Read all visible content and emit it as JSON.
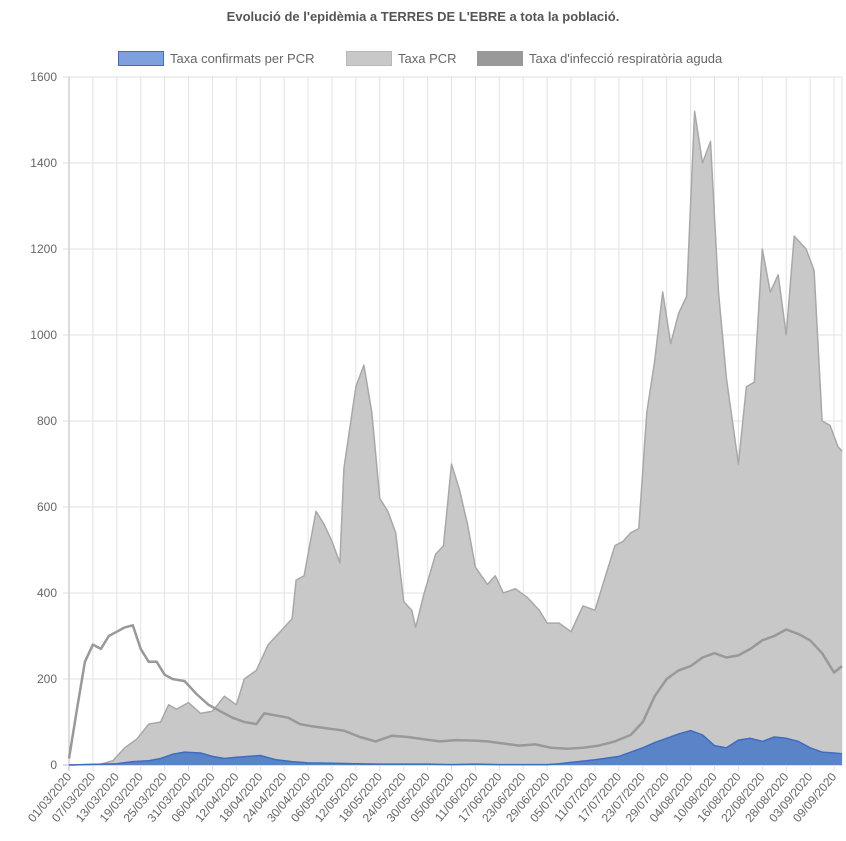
{
  "chart_data": {
    "type": "area",
    "title": "Evolució de l'epidèmia a TERRES DE L'EBRE a tota la població.",
    "xlabel": "",
    "ylabel": "",
    "ylim": [
      0,
      1600
    ],
    "yticks": [
      "0",
      "200",
      "400",
      "600",
      "800",
      "1000",
      "1200",
      "1400",
      "1600"
    ],
    "x_tick_labels": [
      "01/03/2020",
      "07/03/2020",
      "13/03/2020",
      "19/03/2020",
      "25/03/2020",
      "31/03/2020",
      "06/04/2020",
      "12/04/2020",
      "18/04/2020",
      "24/04/2020",
      "30/04/2020",
      "06/05/2020",
      "12/05/2020",
      "18/05/2020",
      "24/05/2020",
      "30/05/2020",
      "05/06/2020",
      "11/06/2020",
      "17/06/2020",
      "23/06/2020",
      "29/06/2020",
      "05/07/2020",
      "11/07/2020",
      "17/07/2020",
      "23/07/2020",
      "29/07/2020",
      "04/08/2020",
      "10/08/2020",
      "16/08/2020",
      "22/08/2020",
      "28/08/2020",
      "03/09/2020",
      "09/09/2020"
    ],
    "x_start": "01/03/2020",
    "x_end": "11/09/2020",
    "grid": true,
    "legend_position": "top",
    "series": [
      {
        "name": "Taxa confirmats per PCR",
        "color": "#5b84c8",
        "border": "#3e6dbd",
        "points": [
          [
            "01/03/2020",
            0
          ],
          [
            "13/03/2020",
            3
          ],
          [
            "17/03/2020",
            8
          ],
          [
            "21/03/2020",
            10
          ],
          [
            "24/03/2020",
            15
          ],
          [
            "27/03/2020",
            25
          ],
          [
            "30/03/2020",
            30
          ],
          [
            "03/04/2020",
            28
          ],
          [
            "06/04/2020",
            20
          ],
          [
            "09/04/2020",
            15
          ],
          [
            "12/04/2020",
            18
          ],
          [
            "15/04/2020",
            20
          ],
          [
            "18/04/2020",
            22
          ],
          [
            "22/04/2020",
            12
          ],
          [
            "26/04/2020",
            8
          ],
          [
            "30/04/2020",
            5
          ],
          [
            "06/05/2020",
            4
          ],
          [
            "12/05/2020",
            3
          ],
          [
            "18/05/2020",
            2
          ],
          [
            "24/05/2020",
            2
          ],
          [
            "30/05/2020",
            2
          ],
          [
            "05/06/2020",
            1
          ],
          [
            "11/06/2020",
            2
          ],
          [
            "17/06/2020",
            1
          ],
          [
            "23/06/2020",
            1
          ],
          [
            "29/06/2020",
            1
          ],
          [
            "02/07/2020",
            3
          ],
          [
            "05/07/2020",
            6
          ],
          [
            "08/07/2020",
            9
          ],
          [
            "11/07/2020",
            12
          ],
          [
            "14/07/2020",
            16
          ],
          [
            "17/07/2020",
            20
          ],
          [
            "20/07/2020",
            30
          ],
          [
            "23/07/2020",
            40
          ],
          [
            "26/07/2020",
            52
          ],
          [
            "29/07/2020",
            62
          ],
          [
            "01/08/2020",
            72
          ],
          [
            "04/08/2020",
            80
          ],
          [
            "07/08/2020",
            70
          ],
          [
            "10/08/2020",
            45
          ],
          [
            "13/08/2020",
            40
          ],
          [
            "16/08/2020",
            58
          ],
          [
            "19/08/2020",
            62
          ],
          [
            "22/08/2020",
            55
          ],
          [
            "25/08/2020",
            65
          ],
          [
            "28/08/2020",
            62
          ],
          [
            "31/08/2020",
            55
          ],
          [
            "03/09/2020",
            40
          ],
          [
            "06/09/2020",
            30
          ],
          [
            "09/09/2020",
            28
          ],
          [
            "11/09/2020",
            26
          ]
        ]
      },
      {
        "name": "Taxa PCR",
        "color": "#c8c8c8",
        "border": "#a8a8a8",
        "points": [
          [
            "01/03/2020",
            0
          ],
          [
            "09/03/2020",
            2
          ],
          [
            "12/03/2020",
            10
          ],
          [
            "15/03/2020",
            40
          ],
          [
            "18/03/2020",
            60
          ],
          [
            "21/03/2020",
            95
          ],
          [
            "24/03/2020",
            100
          ],
          [
            "26/03/2020",
            140
          ],
          [
            "28/03/2020",
            130
          ],
          [
            "31/03/2020",
            145
          ],
          [
            "03/04/2020",
            120
          ],
          [
            "06/04/2020",
            125
          ],
          [
            "09/04/2020",
            160
          ],
          [
            "12/04/2020",
            140
          ],
          [
            "14/04/2020",
            200
          ],
          [
            "17/04/2020",
            220
          ],
          [
            "20/04/2020",
            280
          ],
          [
            "23/04/2020",
            310
          ],
          [
            "26/04/2020",
            340
          ],
          [
            "27/04/2020",
            430
          ],
          [
            "29/04/2020",
            440
          ],
          [
            "02/05/2020",
            590
          ],
          [
            "04/05/2020",
            560
          ],
          [
            "06/05/2020",
            520
          ],
          [
            "08/05/2020",
            470
          ],
          [
            "09/05/2020",
            690
          ],
          [
            "12/05/2020",
            880
          ],
          [
            "14/05/2020",
            930
          ],
          [
            "16/05/2020",
            820
          ],
          [
            "18/05/2020",
            620
          ],
          [
            "20/05/2020",
            590
          ],
          [
            "22/05/2020",
            540
          ],
          [
            "24/05/2020",
            380
          ],
          [
            "26/05/2020",
            360
          ],
          [
            "27/05/2020",
            320
          ],
          [
            "29/05/2020",
            395
          ],
          [
            "01/06/2020",
            490
          ],
          [
            "03/06/2020",
            510
          ],
          [
            "05/06/2020",
            700
          ],
          [
            "07/06/2020",
            640
          ],
          [
            "09/06/2020",
            560
          ],
          [
            "11/06/2020",
            460
          ],
          [
            "14/06/2020",
            420
          ],
          [
            "16/06/2020",
            440
          ],
          [
            "18/06/2020",
            400
          ],
          [
            "21/06/2020",
            410
          ],
          [
            "24/06/2020",
            390
          ],
          [
            "27/06/2020",
            360
          ],
          [
            "29/06/2020",
            330
          ],
          [
            "02/07/2020",
            330
          ],
          [
            "05/07/2020",
            310
          ],
          [
            "08/07/2020",
            370
          ],
          [
            "11/07/2020",
            360
          ],
          [
            "13/07/2020",
            420
          ],
          [
            "16/07/2020",
            510
          ],
          [
            "18/07/2020",
            520
          ],
          [
            "20/07/2020",
            540
          ],
          [
            "22/07/2020",
            550
          ],
          [
            "24/07/2020",
            820
          ],
          [
            "26/07/2020",
            940
          ],
          [
            "28/07/2020",
            1100
          ],
          [
            "30/07/2020",
            980
          ],
          [
            "01/08/2020",
            1050
          ],
          [
            "03/08/2020",
            1090
          ],
          [
            "05/08/2020",
            1520
          ],
          [
            "07/08/2020",
            1400
          ],
          [
            "09/08/2020",
            1450
          ],
          [
            "11/08/2020",
            1100
          ],
          [
            "13/08/2020",
            900
          ],
          [
            "16/08/2020",
            700
          ],
          [
            "18/08/2020",
            880
          ],
          [
            "20/08/2020",
            890
          ],
          [
            "22/08/2020",
            1200
          ],
          [
            "24/08/2020",
            1100
          ],
          [
            "26/08/2020",
            1140
          ],
          [
            "28/08/2020",
            1000
          ],
          [
            "30/08/2020",
            1230
          ],
          [
            "02/09/2020",
            1200
          ],
          [
            "04/09/2020",
            1150
          ],
          [
            "06/09/2020",
            800
          ],
          [
            "08/09/2020",
            790
          ],
          [
            "10/09/2020",
            740
          ],
          [
            "11/09/2020",
            730
          ]
        ]
      },
      {
        "name": "Taxa d'infecció respiratòria aguda",
        "color": "#999999",
        "border": "#999999",
        "line_only": true,
        "points": [
          [
            "01/03/2020",
            15
          ],
          [
            "03/03/2020",
            130
          ],
          [
            "05/03/2020",
            240
          ],
          [
            "07/03/2020",
            280
          ],
          [
            "09/03/2020",
            270
          ],
          [
            "11/03/2020",
            300
          ],
          [
            "13/03/2020",
            310
          ],
          [
            "15/03/2020",
            320
          ],
          [
            "17/03/2020",
            325
          ],
          [
            "19/03/2020",
            270
          ],
          [
            "21/03/2020",
            240
          ],
          [
            "23/03/2020",
            240
          ],
          [
            "25/03/2020",
            210
          ],
          [
            "27/03/2020",
            200
          ],
          [
            "30/03/2020",
            195
          ],
          [
            "02/04/2020",
            165
          ],
          [
            "05/04/2020",
            140
          ],
          [
            "08/04/2020",
            125
          ],
          [
            "11/04/2020",
            110
          ],
          [
            "14/04/2020",
            100
          ],
          [
            "17/04/2020",
            95
          ],
          [
            "19/04/2020",
            120
          ],
          [
            "22/04/2020",
            115
          ],
          [
            "25/04/2020",
            110
          ],
          [
            "28/04/2020",
            95
          ],
          [
            "01/05/2020",
            90
          ],
          [
            "05/05/2020",
            85
          ],
          [
            "09/05/2020",
            80
          ],
          [
            "13/05/2020",
            65
          ],
          [
            "17/05/2020",
            55
          ],
          [
            "21/05/2020",
            68
          ],
          [
            "25/05/2020",
            65
          ],
          [
            "29/05/2020",
            60
          ],
          [
            "02/06/2020",
            55
          ],
          [
            "06/06/2020",
            58
          ],
          [
            "10/06/2020",
            57
          ],
          [
            "14/06/2020",
            55
          ],
          [
            "18/06/2020",
            50
          ],
          [
            "22/06/2020",
            45
          ],
          [
            "26/06/2020",
            48
          ],
          [
            "30/06/2020",
            40
          ],
          [
            "04/07/2020",
            38
          ],
          [
            "08/07/2020",
            40
          ],
          [
            "12/07/2020",
            45
          ],
          [
            "16/07/2020",
            55
          ],
          [
            "20/07/2020",
            70
          ],
          [
            "23/07/2020",
            100
          ],
          [
            "26/07/2020",
            160
          ],
          [
            "29/07/2020",
            200
          ],
          [
            "01/08/2020",
            220
          ],
          [
            "04/08/2020",
            230
          ],
          [
            "07/08/2020",
            250
          ],
          [
            "10/08/2020",
            260
          ],
          [
            "13/08/2020",
            250
          ],
          [
            "16/08/2020",
            255
          ],
          [
            "19/08/2020",
            270
          ],
          [
            "22/08/2020",
            290
          ],
          [
            "25/08/2020",
            300
          ],
          [
            "28/08/2020",
            315
          ],
          [
            "31/08/2020",
            305
          ],
          [
            "03/09/2020",
            290
          ],
          [
            "06/09/2020",
            260
          ],
          [
            "09/09/2020",
            215
          ],
          [
            "11/09/2020",
            230
          ]
        ]
      }
    ]
  }
}
